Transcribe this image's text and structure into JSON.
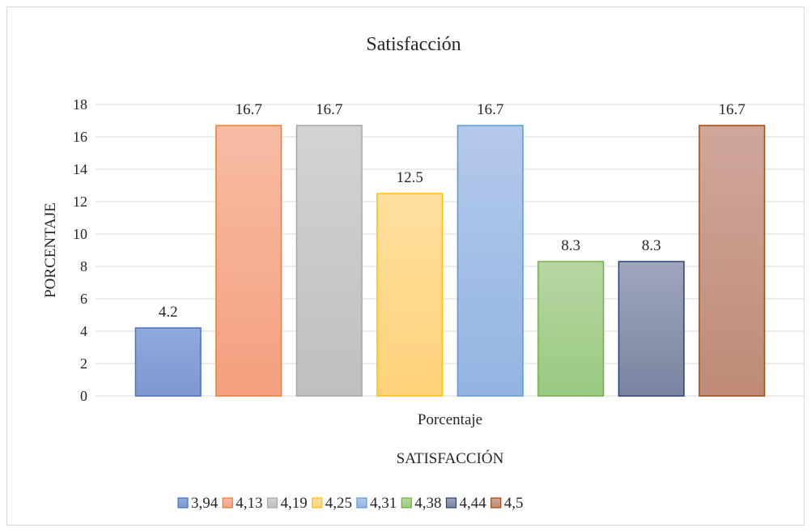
{
  "chart_data": {
    "type": "bar",
    "title": "Satisfacción",
    "ylabel": "PORCENTAJE",
    "xlabel": "SATISFACCIÓN",
    "categories": [
      "Porcentaje"
    ],
    "ylim": [
      0,
      18
    ],
    "yticks": [
      0,
      2,
      4,
      6,
      8,
      10,
      12,
      14,
      16,
      18
    ],
    "grid": true,
    "legend_position": "bottom",
    "series": [
      {
        "name": "3,94",
        "value": 4.2,
        "label": "4.2",
        "color": "#8faadc",
        "color_dark": "#7f97d0",
        "edge": "#4472c4"
      },
      {
        "name": "4,13",
        "value": 16.7,
        "label": "16.7",
        "color": "#f8bca4",
        "color_dark": "#f4a07e",
        "edge": "#ed7d31"
      },
      {
        "name": "4,19",
        "value": 16.7,
        "label": "16.7",
        "color": "#d3d3d3",
        "color_dark": "#bfbfbf",
        "edge": "#a5a5a5"
      },
      {
        "name": "4,25",
        "value": 12.5,
        "label": "12.5",
        "color": "#ffdf9f",
        "color_dark": "#ffd27a",
        "edge": "#ffc000"
      },
      {
        "name": "4,31",
        "value": 16.7,
        "label": "16.7",
        "color": "#b4c9ea",
        "color_dark": "#93b4e2",
        "edge": "#5b9bd5"
      },
      {
        "name": "4,38",
        "value": 8.3,
        "label": "8.3",
        "color": "#b6d7a2",
        "color_dark": "#9ac980",
        "edge": "#70ad47"
      },
      {
        "name": "4,44",
        "value": 8.3,
        "label": "8.3",
        "color": "#a0a6bd",
        "color_dark": "#7a83a0",
        "edge": "#264478"
      },
      {
        "name": "4,5",
        "value": 16.7,
        "label": "16.7",
        "color": "#cfa89a",
        "color_dark": "#bf8a78",
        "edge": "#9e480e"
      }
    ]
  }
}
